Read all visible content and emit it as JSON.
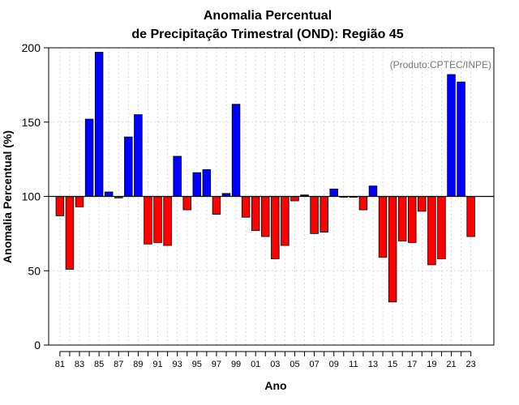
{
  "chart_data": {
    "type": "bar",
    "title_line1": "Anomalia Percentual",
    "title_line2": "de Precipitação Trimestral (OND): Região 45",
    "xlabel": "Ano",
    "ylabel": "Anomalia Percentual (%)",
    "annotation": "(Produto:CPTEC/INPE)",
    "ylim": [
      0,
      200
    ],
    "yticks": [
      0,
      50,
      100,
      150,
      200
    ],
    "baseline": 100,
    "grid": true,
    "colors": {
      "above": "#0000ff",
      "below": "#ff0000",
      "outline": "#000000",
      "grid": "#d9d9d9"
    },
    "categories": [
      "1981",
      "1982",
      "1983",
      "1984",
      "1985",
      "1986",
      "1987",
      "1988",
      "1989",
      "1990",
      "1991",
      "1992",
      "1993",
      "1994",
      "1995",
      "1996",
      "1997",
      "1998",
      "1999",
      "2000",
      "2001",
      "2002",
      "2003",
      "2004",
      "2005",
      "2006",
      "2007",
      "2008",
      "2009",
      "2010",
      "2011",
      "2012",
      "2013",
      "2014",
      "2015",
      "2016",
      "2017",
      "2018",
      "2019",
      "2020",
      "2021",
      "2022",
      "2023"
    ],
    "xtick_labels": [
      "81",
      "83",
      "85",
      "87",
      "89",
      "91",
      "93",
      "95",
      "97",
      "99",
      "01",
      "03",
      "05",
      "07",
      "09",
      "11",
      "13",
      "15",
      "17",
      "19",
      "21",
      "23"
    ],
    "values": [
      87,
      51,
      93,
      152,
      197,
      103,
      99,
      140,
      155,
      68,
      69,
      67,
      127,
      91,
      116,
      118,
      88,
      102,
      162,
      86,
      77,
      73,
      58,
      67,
      97,
      101,
      75,
      76,
      105,
      100,
      100,
      91,
      107,
      59,
      29,
      70,
      69,
      90,
      54,
      58,
      182,
      177,
      73
    ]
  }
}
